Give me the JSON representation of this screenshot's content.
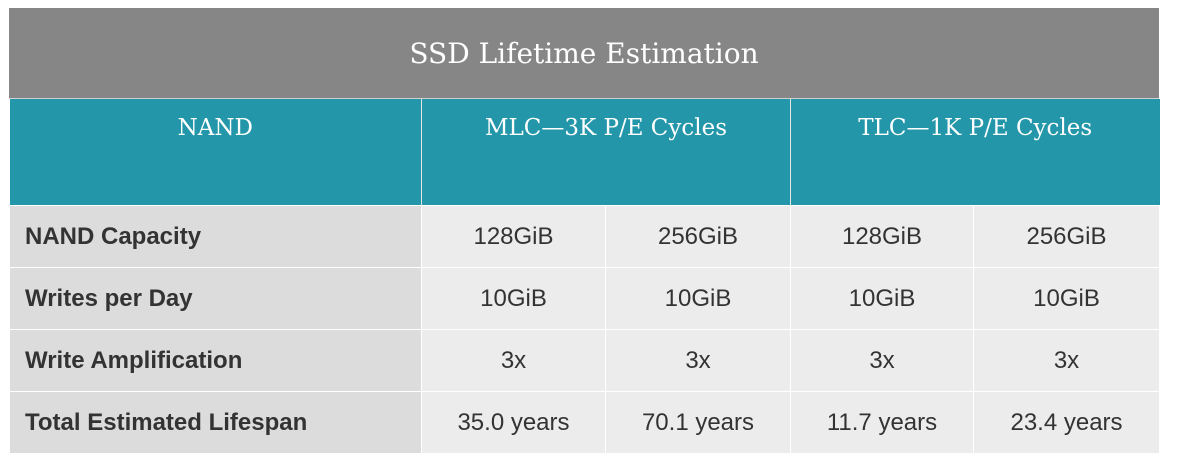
{
  "title": "SSD Lifetime Estimation",
  "header": {
    "col0": "NAND",
    "col1": "MLC—3K P/E Cycles",
    "col2": "TLC—1K P/E Cycles"
  },
  "rows": [
    {
      "label": "NAND Capacity",
      "values": [
        "128GiB",
        "256GiB",
        "128GiB",
        "256GiB"
      ]
    },
    {
      "label": "Writes per Day",
      "values": [
        "10GiB",
        "10GiB",
        "10GiB",
        "10GiB"
      ]
    },
    {
      "label": "Write Amplification",
      "values": [
        "3x",
        "3x",
        "3x",
        "3x"
      ]
    },
    {
      "label": "Total Estimated Lifespan",
      "values": [
        "35.0 years",
        "70.1 years",
        "11.7 years",
        "23.4 years"
      ]
    }
  ],
  "colors": {
    "title_bg": "#868686",
    "header_bg": "#2396a9",
    "label_bg": "#dcdcdc",
    "cell_bg": "#ececec",
    "text": "#333333"
  }
}
